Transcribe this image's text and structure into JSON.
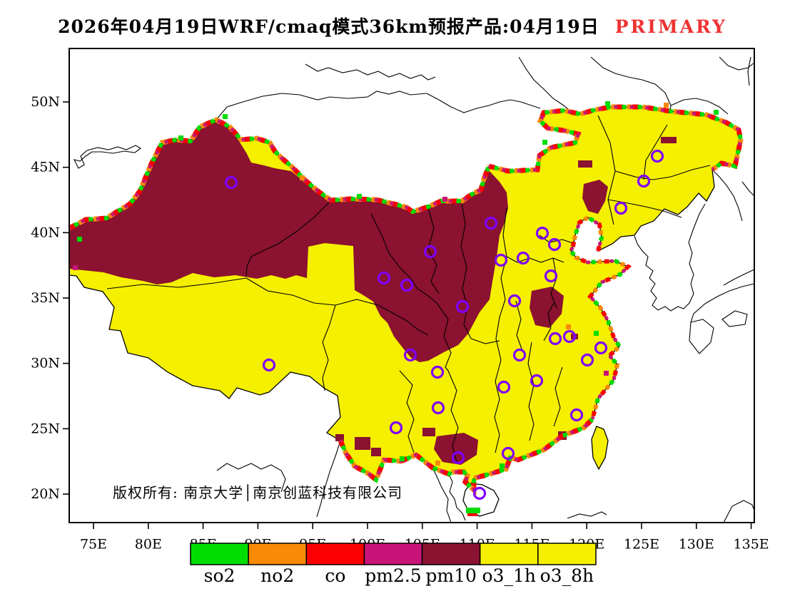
{
  "title": {
    "main": "2026年04月19日WRF/cmaq模式36km预报产品:04月19日",
    "badge": "PRIMARY"
  },
  "axes": {
    "lat_labels": [
      "50N",
      "45N",
      "40N",
      "35N",
      "30N",
      "25N",
      "20N"
    ],
    "lon_labels": [
      "75E",
      "80E",
      "85E",
      "90E",
      "95E",
      "100E",
      "105E",
      "110E",
      "115E",
      "120E",
      "125E",
      "130E",
      "135E"
    ]
  },
  "legend": {
    "items": [
      {
        "label": "so2",
        "color": "#00DC00"
      },
      {
        "label": "no2",
        "color": "#F98A06"
      },
      {
        "label": "co",
        "color": "#FA0000"
      },
      {
        "label": "pm2.5",
        "color": "#C81478"
      },
      {
        "label": "pm10",
        "color": "#8B1230"
      },
      {
        "label": "o3_1h",
        "color": "#F5F000"
      },
      {
        "label": "o3_8h",
        "color": "#F5F000"
      }
    ]
  },
  "map": {
    "copyright": "版权所有: 南京大学│南京创蓝科技有限公司"
  },
  "colors": {
    "badge_red": "#EE3333",
    "dominant_fill": "#F5F000",
    "secondary_fill": "#8B1230",
    "marker_purple": "#8000FF",
    "outline_black": "#000000",
    "background": "#FFFFFF",
    "speckle_green": "#00DC00",
    "speckle_orange": "#F98A06",
    "speckle_red": "#FA0000",
    "speckle_magenta": "#C81478"
  }
}
